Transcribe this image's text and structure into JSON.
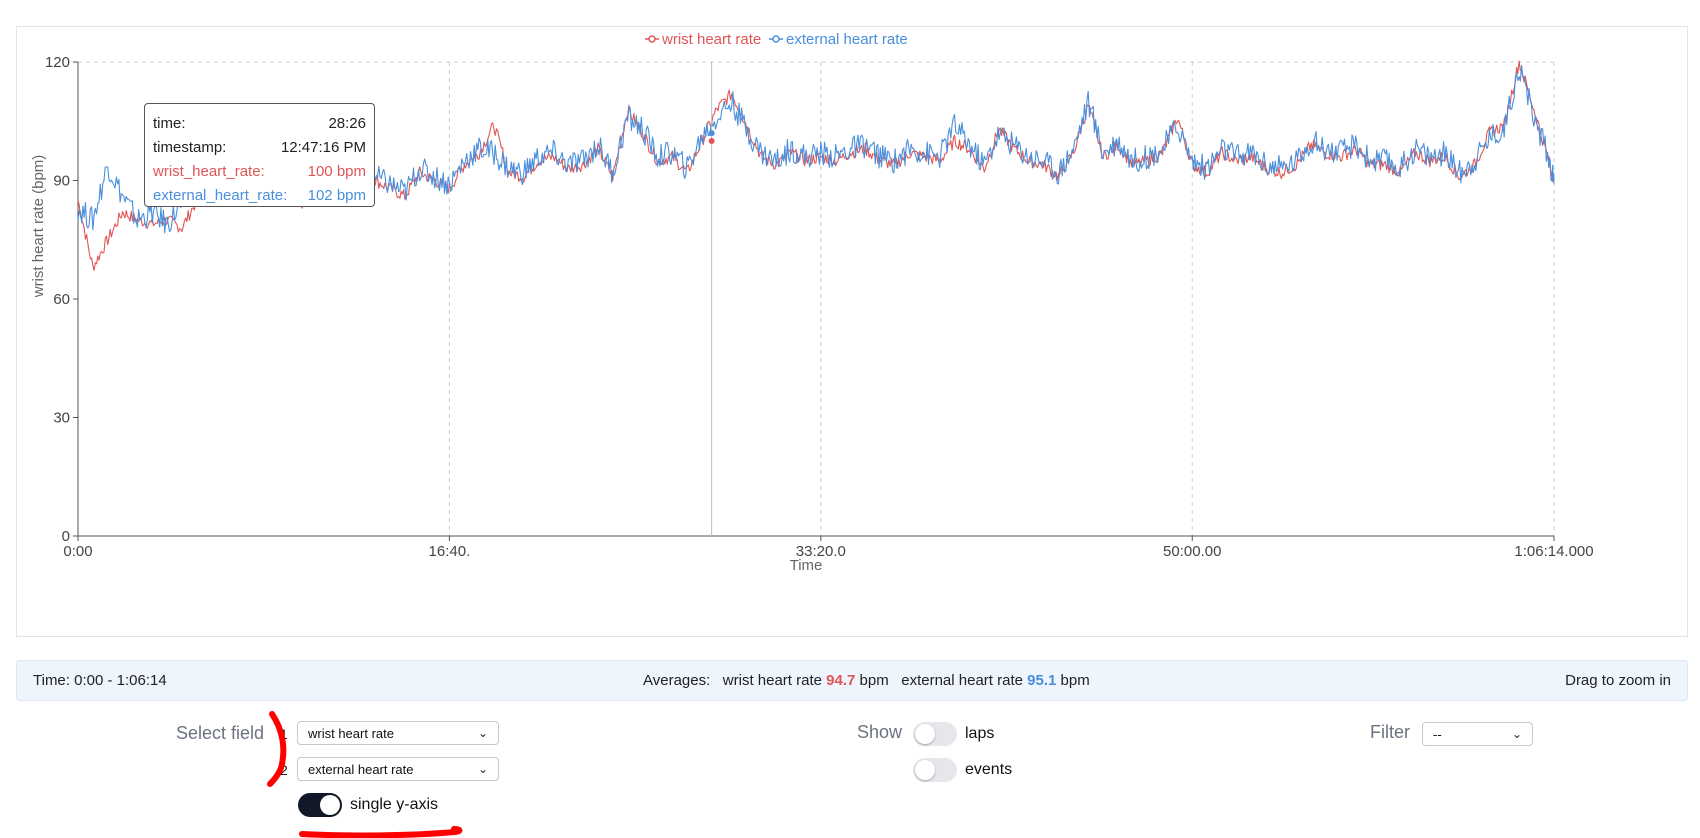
{
  "legend": {
    "wrist_label": "wrist heart rate",
    "external_label": "external heart rate"
  },
  "colors": {
    "wrist": "#e05555",
    "external": "#4a8fdc",
    "annotation": "#ff0000"
  },
  "tooltip": {
    "time_label": "time:",
    "time_value": "28:26",
    "timestamp_label": "timestamp:",
    "timestamp_value": "12:47:16 PM",
    "wrist_label": "wrist_heart_rate:",
    "wrist_value": "100 bpm",
    "external_label": "external_heart_rate:",
    "external_value": "102 bpm"
  },
  "chart_data": {
    "type": "line",
    "xlabel": "Time",
    "ylabel": "wrist heart rate (bpm)",
    "ylim": [
      0,
      120
    ],
    "yticks": [
      0,
      30,
      60,
      90,
      120
    ],
    "xlim": [
      0,
      3974
    ],
    "xticks": [
      {
        "value": 0,
        "label": "0:00"
      },
      {
        "value": 1000,
        "label": "16:40."
      },
      {
        "value": 2000,
        "label": "33:20.0"
      },
      {
        "value": 3000,
        "label": "50:00.00"
      },
      {
        "value": 3974,
        "label": "1:06:14.000"
      }
    ],
    "grid": "vertical dashed",
    "legend_position": "top-center",
    "cursor_time_s": 1706,
    "cursor_values": {
      "wrist": 100,
      "external": 102
    },
    "x": [
      0,
      40,
      80,
      120,
      160,
      200,
      240,
      280,
      320,
      360,
      400,
      440,
      480,
      520,
      560,
      600,
      640,
      680,
      720,
      760,
      800,
      840,
      880,
      920,
      960,
      1000,
      1040,
      1080,
      1120,
      1160,
      1200,
      1240,
      1280,
      1320,
      1360,
      1400,
      1440,
      1480,
      1520,
      1560,
      1600,
      1640,
      1680,
      1720,
      1760,
      1800,
      1840,
      1880,
      1920,
      1960,
      2000,
      2040,
      2080,
      2120,
      2160,
      2200,
      2240,
      2280,
      2320,
      2360,
      2400,
      2440,
      2480,
      2520,
      2560,
      2600,
      2640,
      2680,
      2720,
      2760,
      2800,
      2840,
      2880,
      2920,
      2960,
      3000,
      3040,
      3080,
      3120,
      3160,
      3200,
      3240,
      3280,
      3320,
      3360,
      3400,
      3440,
      3480,
      3520,
      3560,
      3600,
      3640,
      3680,
      3720,
      3760,
      3800,
      3840,
      3880,
      3920,
      3960,
      3974
    ],
    "series": [
      {
        "name": "wrist heart rate",
        "values": [
          85,
          68,
          75,
          82,
          80,
          79,
          80,
          78,
          85,
          90,
          91,
          93,
          95,
          92,
          90,
          84,
          88,
          93,
          95,
          93,
          90,
          88,
          86,
          92,
          90,
          88,
          94,
          97,
          104,
          92,
          91,
          95,
          96,
          93,
          94,
          98,
          91,
          108,
          102,
          95,
          96,
          92,
          100,
          108,
          112,
          104,
          96,
          94,
          97,
          95,
          96,
          95,
          97,
          98,
          95,
          94,
          97,
          96,
          95,
          100,
          98,
          93,
          103,
          98,
          95,
          94,
          91,
          97,
          109,
          96,
          99,
          94,
          95,
          97,
          106,
          94,
          92,
          97,
          95,
          96,
          93,
          92,
          94,
          99,
          97,
          96,
          98,
          94,
          94,
          92,
          97,
          95,
          96,
          91,
          94,
          102,
          104,
          120,
          108,
          95,
          90
        ]
      },
      {
        "name": "external heart rate",
        "values": [
          83,
          80,
          94,
          86,
          80,
          82,
          79,
          84,
          90,
          94,
          92,
          94,
          96,
          93,
          91,
          86,
          90,
          94,
          96,
          94,
          91,
          89,
          87,
          93,
          91,
          89,
          95,
          98,
          97,
          93,
          92,
          96,
          97,
          94,
          95,
          99,
          92,
          106,
          103,
          96,
          97,
          93,
          101,
          106,
          110,
          103,
          97,
          95,
          98,
          96,
          97,
          96,
          98,
          99,
          96,
          95,
          98,
          97,
          96,
          104,
          99,
          94,
          102,
          99,
          96,
          95,
          92,
          98,
          110,
          97,
          100,
          95,
          96,
          98,
          104,
          95,
          93,
          98,
          96,
          97,
          94,
          93,
          95,
          100,
          98,
          97,
          99,
          95,
          95,
          93,
          98,
          96,
          97,
          92,
          95,
          101,
          103,
          119,
          106,
          96,
          89
        ]
      }
    ]
  },
  "info": {
    "time_range": "Time: 0:00 - 1:06:14",
    "averages_label": "Averages:",
    "wrist_label": "wrist heart rate",
    "wrist_avg": "94.7",
    "external_label": "external heart rate",
    "external_avg": "95.1",
    "unit": "bpm",
    "zoom_hint": "Drag to zoom in"
  },
  "controls": {
    "select_field_label": "Select field",
    "field1_index": "1",
    "field1_value": "wrist heart rate",
    "field2_index": "2",
    "field2_value": "external heart rate",
    "single_axis_label": "single y-axis",
    "single_axis_on": true,
    "show_label": "Show",
    "laps_label": "laps",
    "laps_on": false,
    "events_label": "events",
    "events_on": false,
    "filter_label": "Filter",
    "filter_value": "--"
  }
}
